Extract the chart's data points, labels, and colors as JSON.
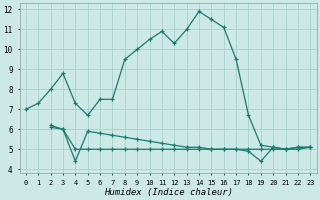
{
  "xlabel": "Humidex (Indice chaleur)",
  "xlim": [
    -0.5,
    23.5
  ],
  "ylim": [
    3.8,
    12.3
  ],
  "yticks": [
    4,
    5,
    6,
    7,
    8,
    9,
    10,
    11,
    12
  ],
  "xticks": [
    0,
    1,
    2,
    3,
    4,
    5,
    6,
    7,
    8,
    9,
    10,
    11,
    12,
    13,
    14,
    15,
    16,
    17,
    18,
    19,
    20,
    21,
    22,
    23
  ],
  "bg_color": "#cce9e7",
  "grid_color": "#aad4d0",
  "line_color": "#1a7a6e",
  "lines": [
    {
      "x": [
        0,
        1,
        2,
        3,
        4,
        5,
        6,
        7,
        8,
        9,
        10,
        11,
        12,
        13,
        14,
        15,
        16,
        17,
        18,
        19,
        20,
        21,
        22,
        23
      ],
      "y": [
        7.0,
        7.3,
        8.0,
        8.8,
        7.3,
        6.7,
        7.5,
        7.5,
        9.5,
        10.0,
        10.5,
        10.9,
        10.3,
        11.0,
        11.9,
        11.5,
        11.1,
        9.5,
        6.7,
        5.2,
        5.1,
        5.0,
        5.1,
        5.1
      ]
    },
    {
      "x": [
        2,
        3,
        4,
        5,
        6,
        7,
        8,
        9,
        10,
        11,
        12,
        13,
        14,
        15,
        16,
        17,
        18,
        19,
        20,
        21,
        22,
        23
      ],
      "y": [
        6.2,
        6.0,
        5.0,
        5.0,
        5.0,
        5.0,
        5.0,
        5.0,
        5.0,
        5.0,
        5.0,
        5.0,
        5.0,
        5.0,
        5.0,
        5.0,
        5.0,
        5.0,
        5.0,
        5.0,
        5.0,
        5.1
      ]
    },
    {
      "x": [
        2,
        3,
        4,
        5,
        6,
        7,
        8,
        9,
        10,
        11,
        12,
        13,
        14,
        15,
        16,
        17,
        18,
        19,
        20,
        21,
        22,
        23
      ],
      "y": [
        6.1,
        6.0,
        4.4,
        5.9,
        5.8,
        5.7,
        5.6,
        5.5,
        5.4,
        5.3,
        5.2,
        5.1,
        5.1,
        5.0,
        5.0,
        5.0,
        4.9,
        4.4,
        5.1,
        5.0,
        5.1,
        5.1
      ]
    }
  ]
}
